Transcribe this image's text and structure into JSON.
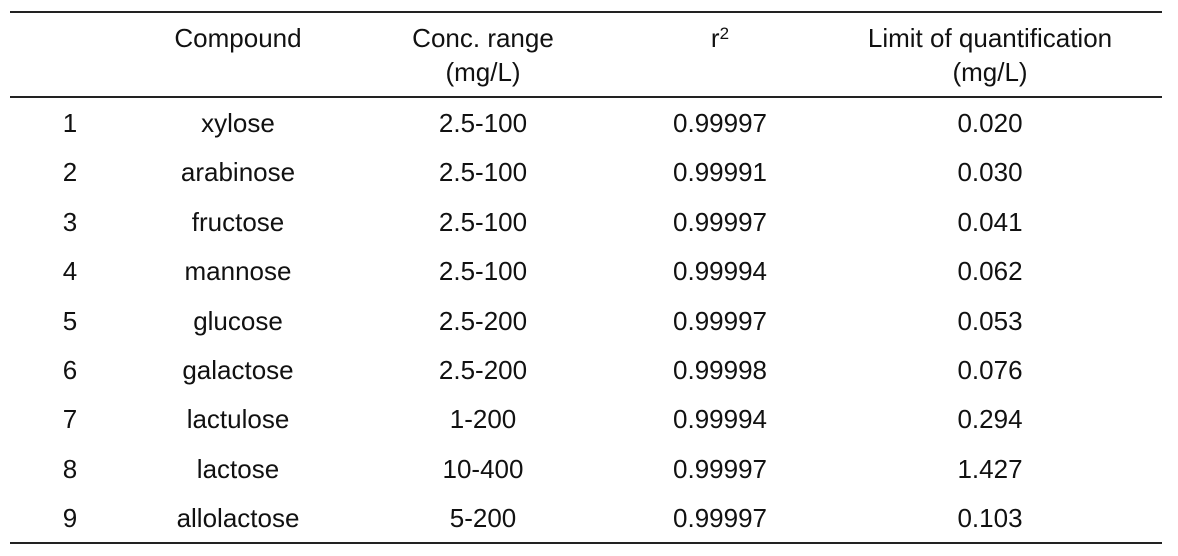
{
  "table": {
    "header": {
      "compound": "Compound",
      "conc": [
        "Conc. range",
        "(mg/L)"
      ],
      "r2": {
        "base": "r",
        "sup": "2"
      },
      "loq": [
        "Limit of quantification",
        "(mg/L)"
      ]
    },
    "rows": [
      [
        "1",
        "xylose",
        "2.5-100",
        "0.99997",
        "0.020"
      ],
      [
        "2",
        "arabinose",
        "2.5-100",
        "0.99991",
        "0.030"
      ],
      [
        "3",
        "fructose",
        "2.5-100",
        "0.99997",
        "0.041"
      ],
      [
        "4",
        "mannose",
        "2.5-100",
        "0.99994",
        "0.062"
      ],
      [
        "5",
        "glucose",
        "2.5-200",
        "0.99997",
        "0.053"
      ],
      [
        "6",
        "galactose",
        "2.5-200",
        "0.99998",
        "0.076"
      ],
      [
        "7",
        "lactulose",
        "1-200",
        "0.99994",
        "0.294"
      ],
      [
        "8",
        "lactose",
        "10-400",
        "0.99997",
        "1.427"
      ],
      [
        "9",
        "allolactose",
        "5-200",
        "0.99997",
        "0.103"
      ]
    ]
  }
}
